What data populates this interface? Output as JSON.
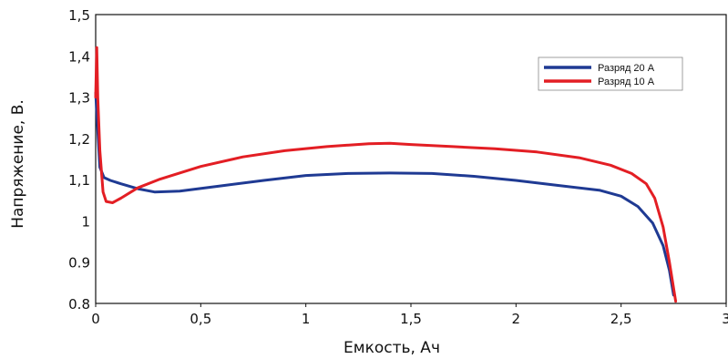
{
  "chart_data": {
    "type": "line",
    "title": "",
    "xlabel": "Емкость, Ач",
    "ylabel": "Напряжение, В.",
    "xlim": [
      0,
      3
    ],
    "ylim": [
      0.8,
      1.5
    ],
    "grid": false,
    "legend_position": "top-right",
    "x_ticks": [
      "0",
      "0,5",
      "1",
      "1,5",
      "2",
      "2,5",
      "3"
    ],
    "x_tick_values": [
      0,
      0.5,
      1,
      1.5,
      2,
      2.5,
      3
    ],
    "y_ticks": [
      "0.8",
      "0.9",
      "1",
      "1,1",
      "1,2",
      "1,3",
      "1,4",
      "1,5"
    ],
    "y_tick_values": [
      0.8,
      0.9,
      1.0,
      1.1,
      1.2,
      1.3,
      1.4,
      1.5
    ],
    "series": [
      {
        "name": "Разряд 20 А",
        "color": "#1f3a93",
        "x": [
          0,
          0.01,
          0.02,
          0.04,
          0.07,
          0.12,
          0.2,
          0.28,
          0.4,
          0.6,
          0.8,
          1.0,
          1.2,
          1.4,
          1.6,
          1.8,
          2.0,
          2.2,
          2.4,
          2.5,
          2.58,
          2.65,
          2.7,
          2.73,
          2.75
        ],
        "y": [
          1.31,
          1.22,
          1.13,
          1.105,
          1.098,
          1.09,
          1.078,
          1.07,
          1.072,
          1.085,
          1.098,
          1.11,
          1.115,
          1.116,
          1.115,
          1.108,
          1.098,
          1.086,
          1.074,
          1.06,
          1.035,
          0.995,
          0.94,
          0.88,
          0.82
        ]
      },
      {
        "name": "Разряд 10 А",
        "color": "#e31e24",
        "x": [
          0,
          0.005,
          0.01,
          0.02,
          0.035,
          0.05,
          0.08,
          0.12,
          0.2,
          0.3,
          0.5,
          0.7,
          0.9,
          1.1,
          1.3,
          1.4,
          1.5,
          1.7,
          1.9,
          2.1,
          2.3,
          2.45,
          2.55,
          2.62,
          2.66,
          2.7,
          2.73,
          2.76
        ],
        "y": [
          1.3,
          1.42,
          1.3,
          1.17,
          1.07,
          1.047,
          1.044,
          1.055,
          1.08,
          1.1,
          1.132,
          1.155,
          1.17,
          1.18,
          1.187,
          1.188,
          1.185,
          1.18,
          1.175,
          1.167,
          1.153,
          1.135,
          1.115,
          1.09,
          1.055,
          0.985,
          0.9,
          0.805
        ]
      }
    ]
  }
}
